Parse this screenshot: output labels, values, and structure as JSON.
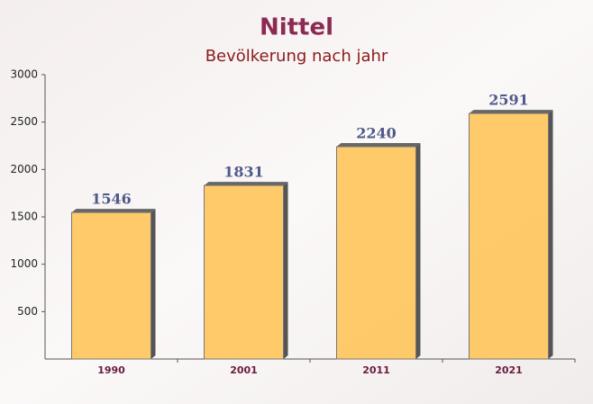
{
  "chart_data": {
    "type": "bar",
    "title": "Nittel",
    "subtitle": "Bevölkerung nach jahr",
    "categories": [
      "1990",
      "2001",
      "2011",
      "2021"
    ],
    "values": [
      1546,
      1831,
      2240,
      2591
    ],
    "color": "#ffc55a",
    "ylim": [
      0,
      3000
    ],
    "yticks": [
      500,
      1000,
      1500,
      2000,
      2500,
      3000
    ]
  }
}
